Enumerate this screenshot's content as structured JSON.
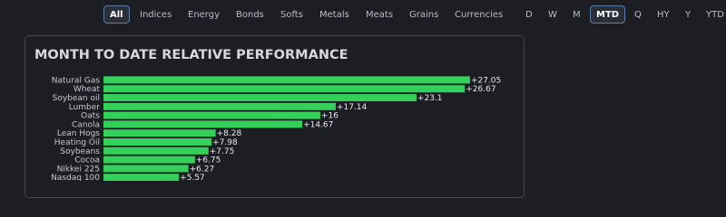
{
  "filters": [
    "All",
    "Indices",
    "Energy",
    "Bonds",
    "Softs",
    "Metals",
    "Meats",
    "Grains",
    "Currencies"
  ],
  "periods": [
    "D",
    "W",
    "M",
    "MTD",
    "Q",
    "HY",
    "Y",
    "YTD"
  ],
  "chart_data": {
    "type": "bar",
    "orientation": "horizontal",
    "title": "MONTH TO DATE RELATIVE PERFORMANCE",
    "categories": [
      "Natural Gas",
      "Wheat",
      "Soybean oil",
      "Lumber",
      "Oats",
      "Canola",
      "Lean Hogs",
      "Heating Oil",
      "Soybeans",
      "Cocoa",
      "Nikkei 225",
      "Nasdaq 100"
    ],
    "values": [
      27.05,
      26.67,
      23.1,
      17.14,
      16,
      14.67,
      8.28,
      7.98,
      7.75,
      6.75,
      6.27,
      5.57
    ],
    "value_labels": [
      "+27.05",
      "+26.67",
      "+23.1",
      "+17.14",
      "+16",
      "+14.67",
      "+8.28",
      "+7.98",
      "+7.75",
      "+6.75",
      "+6.27",
      "+5.57"
    ],
    "color": "#34d15a",
    "xlim": [
      0,
      30
    ]
  }
}
